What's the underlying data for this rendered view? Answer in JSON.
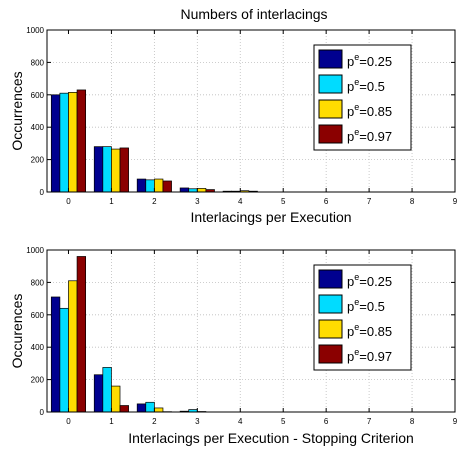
{
  "figure_title": "Numbers of interlacings",
  "colors": {
    "background": "#ffffff",
    "grid": "#bdbdbd",
    "axis": "#000000",
    "bar_edge": "#000000"
  },
  "chart_data": [
    {
      "type": "bar",
      "title": "Numbers of interlacings",
      "xlabel": "Interlacings per Execution",
      "ylabel": "Occurrences",
      "categories": [
        "0",
        "1",
        "2",
        "3",
        "4",
        "5",
        "6",
        "7",
        "8",
        "9"
      ],
      "xlim": [
        -0.5,
        9
      ],
      "ylim": [
        0,
        1000
      ],
      "yticks": [
        0,
        200,
        400,
        600,
        800,
        1000
      ],
      "grid": true,
      "legend_position": "top-right",
      "series": [
        {
          "name": "p^e=0.25",
          "legend_base": "p",
          "legend_sup": "e",
          "legend_rest": "=0.25",
          "color": "#00008f",
          "values": [
            600,
            280,
            80,
            25,
            5,
            0,
            0,
            0,
            0,
            0
          ]
        },
        {
          "name": "p^e=0.5",
          "legend_base": "p",
          "legend_sup": "e",
          "legend_rest": "=0.5",
          "color": "#00dcff",
          "values": [
            610,
            280,
            75,
            20,
            5,
            0,
            0,
            0,
            0,
            0
          ]
        },
        {
          "name": "p^e=0.85",
          "legend_base": "p",
          "legend_sup": "e",
          "legend_rest": "=0.85",
          "color": "#ffdc00",
          "values": [
            615,
            265,
            80,
            22,
            8,
            0,
            0,
            0,
            0,
            0
          ]
        },
        {
          "name": "p^e=0.97",
          "legend_base": "p",
          "legend_sup": "e",
          "legend_rest": "=0.97",
          "color": "#8b0000",
          "values": [
            630,
            272,
            68,
            15,
            5,
            0,
            0,
            0,
            0,
            0
          ]
        }
      ]
    },
    {
      "type": "bar",
      "title": "",
      "xlabel": "Interlacings per Execution - Stopping Criterion",
      "ylabel": "Occurences",
      "categories": [
        "0",
        "1",
        "2",
        "3",
        "4",
        "5",
        "6",
        "7",
        "8",
        "9"
      ],
      "xlim": [
        -0.5,
        9
      ],
      "ylim": [
        0,
        1000
      ],
      "yticks": [
        0,
        200,
        400,
        600,
        800,
        1000
      ],
      "grid": true,
      "legend_position": "top-right",
      "series": [
        {
          "name": "p^e=0.25",
          "legend_base": "p",
          "legend_sup": "e",
          "legend_rest": "=0.25",
          "color": "#00008f",
          "values": [
            710,
            230,
            50,
            5,
            0,
            0,
            0,
            0,
            0,
            0
          ]
        },
        {
          "name": "p^e=0.5",
          "legend_base": "p",
          "legend_sup": "e",
          "legend_rest": "=0.5",
          "color": "#00dcff",
          "values": [
            640,
            275,
            60,
            15,
            0,
            0,
            0,
            0,
            0,
            0
          ]
        },
        {
          "name": "p^e=0.85",
          "legend_base": "p",
          "legend_sup": "e",
          "legend_rest": "=0.85",
          "color": "#ffdc00",
          "values": [
            810,
            160,
            25,
            3,
            0,
            0,
            0,
            0,
            0,
            0
          ]
        },
        {
          "name": "p^e=0.97",
          "legend_base": "p",
          "legend_sup": "e",
          "legend_rest": "=0.97",
          "color": "#8b0000",
          "values": [
            960,
            40,
            2,
            0,
            0,
            0,
            0,
            0,
            0,
            0
          ]
        }
      ]
    }
  ]
}
